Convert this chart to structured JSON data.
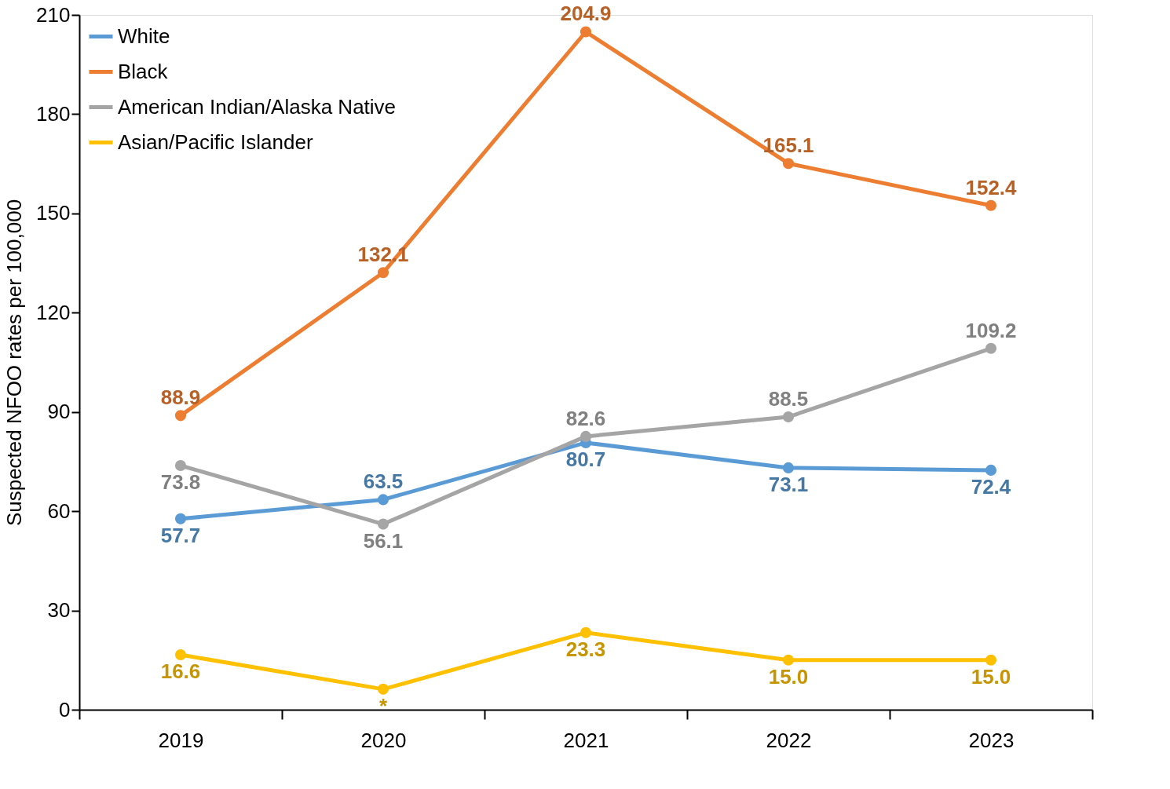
{
  "chart_data": {
    "type": "line",
    "ylabel": "Suspected NFOO rates per 100,000",
    "categories": [
      "2019",
      "2020",
      "2021",
      "2022",
      "2023"
    ],
    "series": [
      {
        "name": "White",
        "color": "#5b9bd5",
        "values": [
          57.7,
          63.5,
          80.7,
          73.1,
          72.4
        ],
        "value_labels": [
          "57.7",
          "63.5",
          "80.7",
          "73.1",
          "72.4"
        ]
      },
      {
        "name": "Black",
        "color": "#ed7d31",
        "values": [
          88.9,
          132.1,
          204.9,
          165.1,
          152.4
        ],
        "value_labels": [
          "88.9",
          "132.1",
          "204.9",
          "165.1",
          "152.4"
        ]
      },
      {
        "name": "American Indian/Alaska Native",
        "color": "#a5a5a5",
        "values": [
          73.8,
          56.1,
          82.6,
          88.5,
          109.2
        ],
        "value_labels": [
          "73.8",
          "56.1",
          "82.6",
          "88.5",
          "109.2"
        ]
      },
      {
        "name": "Asian/Pacific Islander",
        "color": "#ffc000",
        "values": [
          16.6,
          6.2,
          23.3,
          15.0,
          15.0
        ],
        "value_labels": [
          "16.6",
          "*",
          "23.3",
          "15.0",
          "15.0"
        ]
      }
    ],
    "ylim": [
      0,
      210
    ],
    "yticks": [
      0,
      30,
      60,
      90,
      120,
      150,
      180,
      210
    ],
    "grid": false,
    "legend": "top left",
    "marker": "circle",
    "line_style": "solid"
  }
}
